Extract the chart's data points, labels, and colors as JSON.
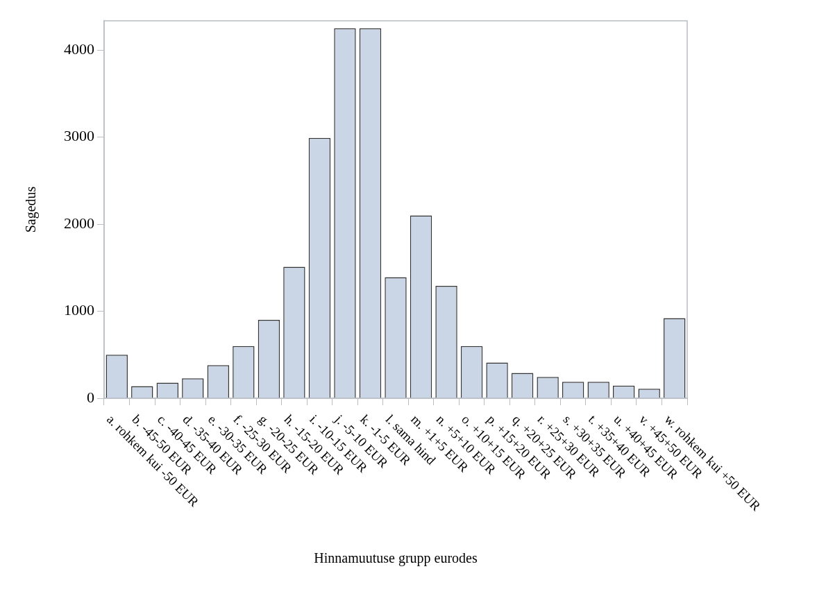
{
  "chart_data": {
    "type": "bar",
    "xlabel": "Hinnamuutuse grupp eurodes",
    "ylabel": "Sagedus",
    "categories": [
      "a. rohkem kui -50 EUR",
      "b. -45-50 EUR",
      "c. -40-45 EUR",
      "d. -35-40 EUR",
      "e. -30-35 EUR",
      "f. -25-30 EUR",
      "g. -20-25 EUR",
      "h. -15-20 EUR",
      "i. -10-15 EUR",
      "j. -5-10 EUR",
      "k. -1-5 EUR",
      "l. sama hind",
      "m. +1+5 EUR",
      "n. +5+10 EUR",
      "o. +10+15 EUR",
      "p. +15+20 EUR",
      "q. +20+25 EUR",
      "r. +25+30 EUR",
      "s. +30+35 EUR",
      "t. +35+40 EUR",
      "u. +40+45 EUR",
      "v. +45+50 EUR",
      "w. rohkem kui +50 EUR"
    ],
    "values": [
      500,
      140,
      180,
      230,
      380,
      600,
      900,
      1510,
      2990,
      4250,
      4250,
      1390,
      2100,
      1290,
      600,
      410,
      290,
      245,
      190,
      190,
      145,
      110,
      920
    ],
    "color": "#cad5e5",
    "ylim": [
      0,
      4335
    ],
    "yticks": [
      0,
      1000,
      2000,
      3000,
      4000
    ]
  }
}
